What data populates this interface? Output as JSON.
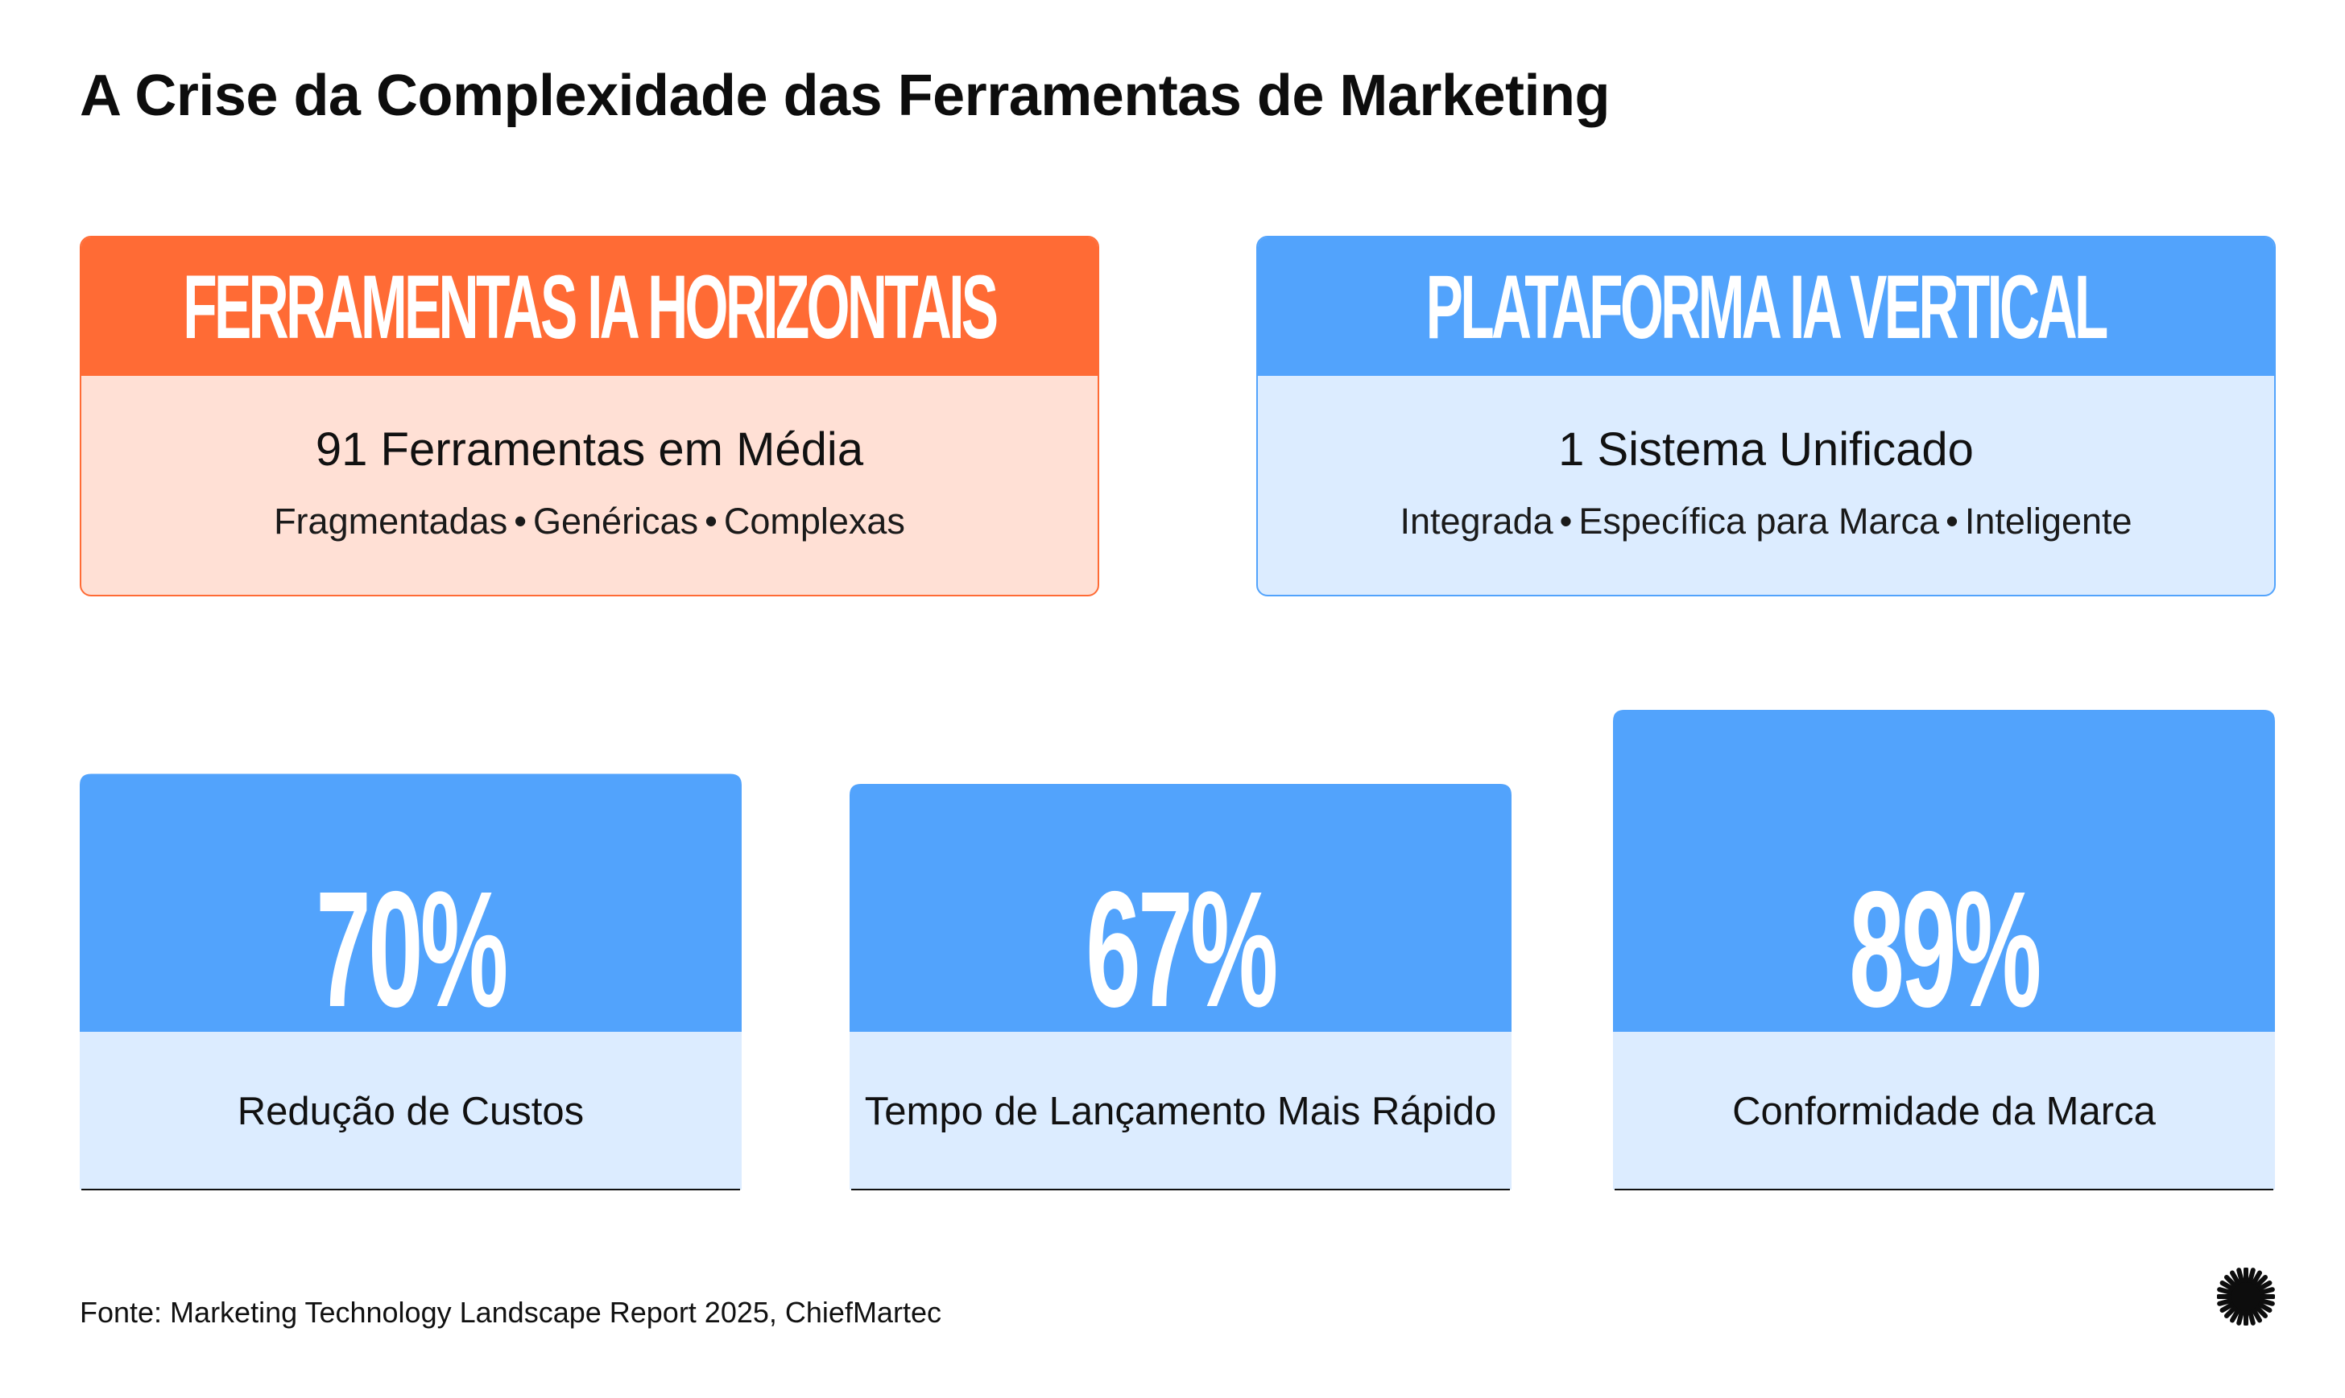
{
  "page": {
    "title": "A Crise da Complexidade das Ferramentas de Marketing"
  },
  "comparison": {
    "left": {
      "heading": "FERRAMENTAS IA HORIZONTAIS",
      "main": "91 Ferramentas em Média",
      "tags": [
        "Fragmentadas",
        "Genéricas",
        "Complexas"
      ],
      "color": "#ff6b35",
      "bg": "#ffe0d5"
    },
    "right": {
      "heading": "PLATAFORMA IA VERTICAL",
      "main": "1 Sistema Unificado",
      "tags": [
        "Integrada",
        "Específica para Marca",
        "Inteligente"
      ],
      "color": "#52a3fc",
      "bg": "#dcecff"
    },
    "separator": "•"
  },
  "chart_data": {
    "type": "bar",
    "categories": [
      "Redução de Custos",
      "Tempo de Lançamento Mais Rápido",
      "Conformidade da Marca"
    ],
    "values": [
      70,
      67,
      89
    ],
    "value_labels": [
      "70%",
      "67%",
      "89%"
    ],
    "unit": "%",
    "ylim": [
      0,
      100
    ],
    "grid": false,
    "colors": {
      "bar": "#52a3fc",
      "label_bg": "#dcecff",
      "value_text": "#ffffff",
      "baseline": "#111111"
    }
  },
  "footer": {
    "source": "Fonte: Marketing Technology Landscape Report 2025, ChiefMartec",
    "logo_icon": "starburst-icon"
  }
}
